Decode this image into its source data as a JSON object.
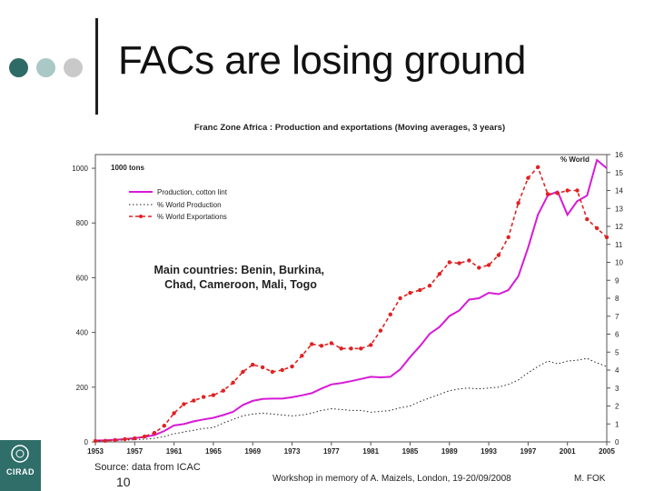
{
  "slide": {
    "title": "FACs are losing ground",
    "source": "Source: data from ICAC",
    "page_number": "10",
    "workshop": "Workshop in memory of A. Maizels, London, 19-20/09/2008",
    "author": "M. FOK",
    "logo_text": "CIRAD",
    "dot_colors": [
      "#2e6b66",
      "#a9c8c6",
      "#c9c9c9"
    ]
  },
  "chart_data": {
    "type": "line",
    "title": "Franc Zone Africa : Production and exportations (Moving averages, 3 years)",
    "ylabel": "1000 tons",
    "y2label": "% World",
    "annotation": "Main countries: Benin, Burkina, Chad, Cameroon, Mali, Togo",
    "legend_position": "top-left",
    "grid": false,
    "xlim": [
      1953,
      2005
    ],
    "ylim": [
      0,
      1050
    ],
    "y2lim": [
      0,
      16
    ],
    "xticks": [
      "1953",
      "1957",
      "1961",
      "1965",
      "1969",
      "1973",
      "1977",
      "1981",
      "1985",
      "1989",
      "1993",
      "1997",
      "2001",
      "2005"
    ],
    "yticks": [
      "0",
      "200",
      "400",
      "600",
      "800",
      "1000"
    ],
    "y2ticks": [
      "0",
      "1",
      "2",
      "3",
      "4",
      "5",
      "6",
      "7",
      "8",
      "9",
      "10",
      "11",
      "12",
      "13",
      "14",
      "15",
      "16"
    ],
    "x": [
      1953,
      1954,
      1955,
      1956,
      1957,
      1958,
      1959,
      1960,
      1961,
      1962,
      1963,
      1964,
      1965,
      1966,
      1967,
      1968,
      1969,
      1970,
      1971,
      1972,
      1973,
      1974,
      1975,
      1976,
      1977,
      1978,
      1979,
      1980,
      1981,
      1982,
      1983,
      1984,
      1985,
      1986,
      1987,
      1988,
      1989,
      1990,
      1991,
      1992,
      1993,
      1994,
      1995,
      1996,
      1997,
      1998,
      1999,
      2000,
      2001,
      2002,
      2003,
      2004,
      2005
    ],
    "series": [
      {
        "name": "Production, cotton lint",
        "axis": "left",
        "color": "#d61ad6",
        "style": "solid",
        "values": [
          5,
          6,
          8,
          10,
          14,
          18,
          25,
          40,
          60,
          65,
          75,
          82,
          88,
          98,
          110,
          135,
          150,
          157,
          158,
          158,
          163,
          170,
          178,
          195,
          210,
          215,
          222,
          230,
          238,
          236,
          238,
          265,
          310,
          350,
          395,
          420,
          460,
          480,
          520,
          525,
          545,
          540,
          555,
          605,
          710,
          830,
          900,
          915,
          830,
          880,
          900,
          1030,
          1000
        ]
      },
      {
        "name": "% World Production",
        "axis": "right",
        "color": "#222222",
        "style": "dotted",
        "values": [
          0.05,
          0.06,
          0.08,
          0.1,
          0.12,
          0.15,
          0.2,
          0.3,
          0.45,
          0.55,
          0.65,
          0.75,
          0.8,
          1.05,
          1.25,
          1.45,
          1.55,
          1.6,
          1.55,
          1.5,
          1.45,
          1.5,
          1.6,
          1.75,
          1.85,
          1.8,
          1.75,
          1.75,
          1.65,
          1.7,
          1.75,
          1.9,
          2.0,
          2.25,
          2.45,
          2.65,
          2.85,
          2.95,
          3.0,
          2.95,
          3.0,
          3.05,
          3.2,
          3.45,
          3.85,
          4.2,
          4.5,
          4.35,
          4.5,
          4.55,
          4.65,
          4.4,
          4.2
        ]
      },
      {
        "name": "% World Exportations",
        "axis": "right",
        "color": "#e02222",
        "style": "dashed-markers",
        "values": [
          0.05,
          0.06,
          0.1,
          0.15,
          0.2,
          0.3,
          0.5,
          0.9,
          1.6,
          2.1,
          2.3,
          2.5,
          2.6,
          2.85,
          3.3,
          3.9,
          4.3,
          4.15,
          3.9,
          4.0,
          4.2,
          4.8,
          5.45,
          5.35,
          5.5,
          5.2,
          5.2,
          5.2,
          5.4,
          6.2,
          7.1,
          8.0,
          8.3,
          8.45,
          8.7,
          9.35,
          10.0,
          9.95,
          10.1,
          9.7,
          9.85,
          10.4,
          11.4,
          13.3,
          14.7,
          15.3,
          13.8,
          13.85,
          14.0,
          14.0,
          12.4,
          11.9,
          11.4
        ]
      }
    ]
  }
}
